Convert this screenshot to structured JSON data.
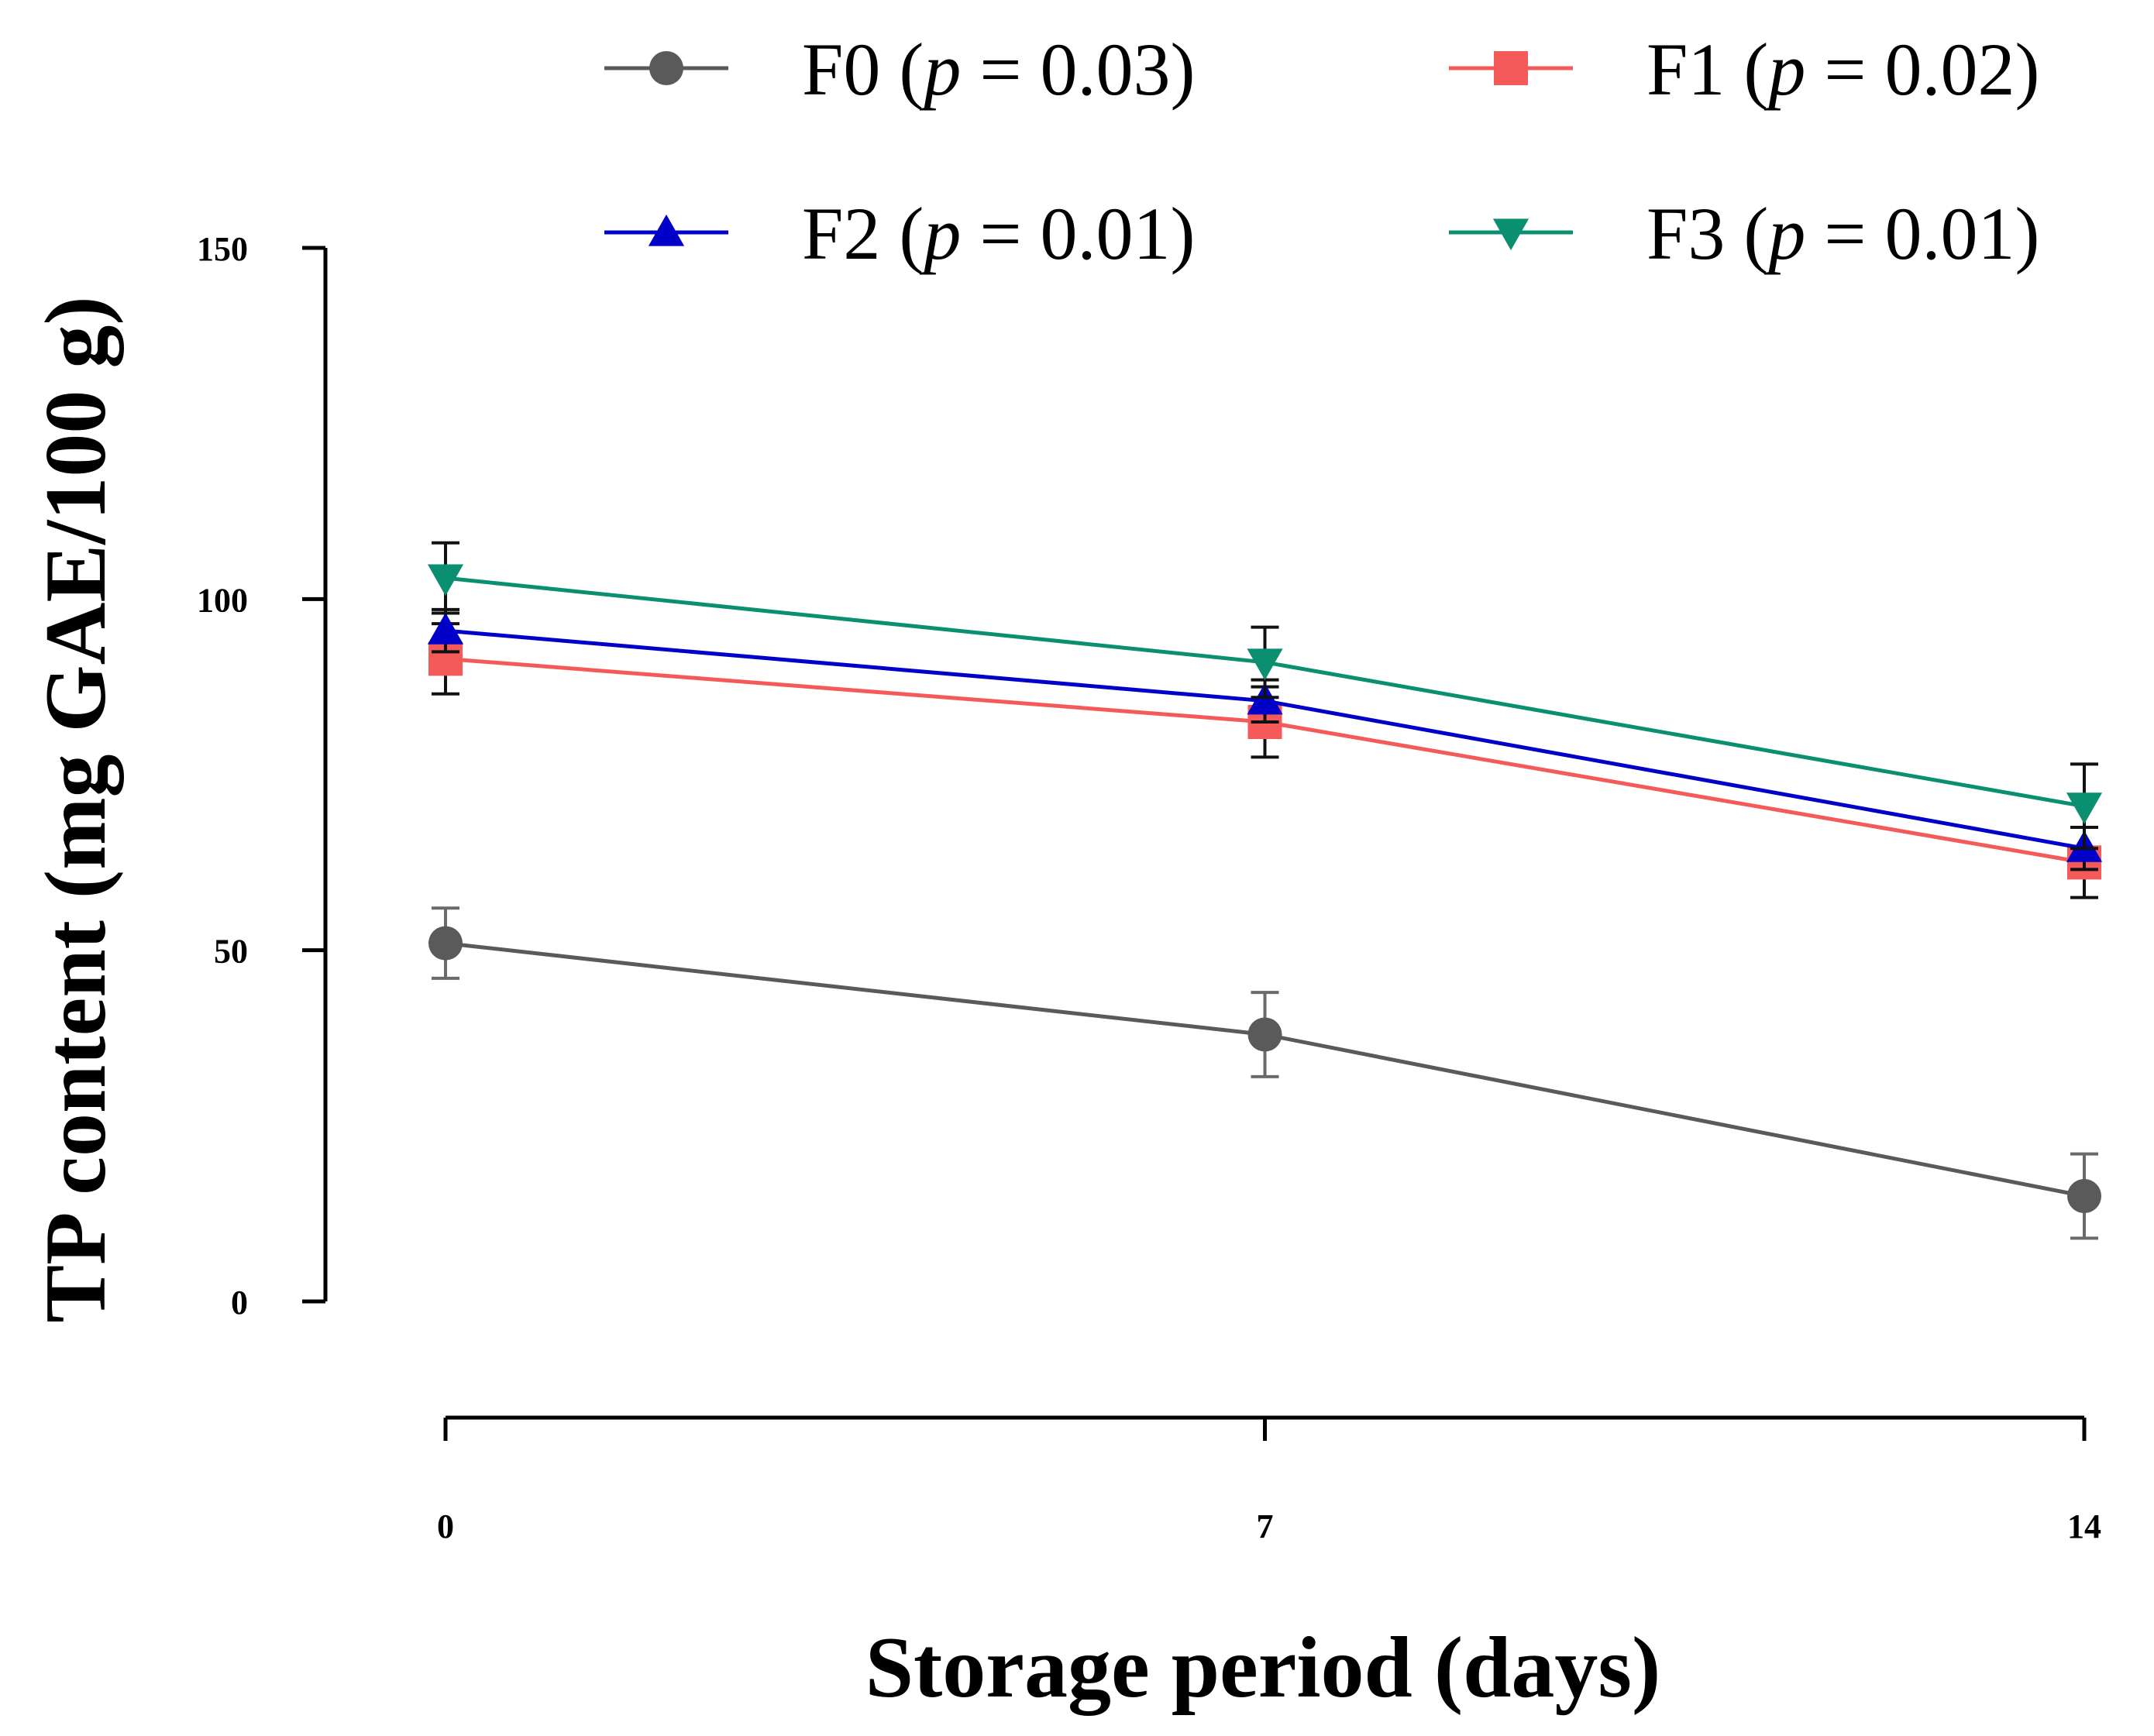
{
  "chart_data": {
    "type": "line",
    "title": "",
    "xlabel": "Storage period (days)",
    "ylabel": "TP content (mg GAE/100 g)",
    "x": [
      0,
      7,
      14
    ],
    "x_tick_labels": [
      "0",
      "7",
      "14"
    ],
    "y_ticks": [
      0,
      50,
      100,
      150
    ],
    "y_tick_labels": [
      "0",
      "50",
      "100",
      "150"
    ],
    "ylim": [
      0,
      150
    ],
    "xlim": [
      0,
      14
    ],
    "grid": false,
    "legend_position": "top",
    "series": [
      {
        "name": "F0",
        "p_prefix": "(",
        "p_symbol": "p",
        "p_suffix": " = 0.03)",
        "values": [
          51,
          38,
          15
        ],
        "errors": [
          5,
          6,
          6
        ],
        "color": "#5a5a5a",
        "marker": "circle"
      },
      {
        "name": "F1",
        "p_prefix": "(",
        "p_symbol": "p",
        "p_suffix": " = 0.02)",
        "values": [
          91.5,
          82.5,
          62.5
        ],
        "errors": [
          5,
          5,
          5
        ],
        "color": "#f55a5a",
        "marker": "square"
      },
      {
        "name": "F2",
        "p_prefix": "(",
        "p_symbol": "p",
        "p_suffix": " = 0.01)",
        "values": [
          95.5,
          85.5,
          64.5
        ],
        "errors": [
          3,
          3,
          3
        ],
        "color": "#0000c8",
        "marker": "triangle-up"
      },
      {
        "name": "F3",
        "p_prefix": "(",
        "p_symbol": "p",
        "p_suffix": " = 0.01)",
        "values": [
          103,
          91,
          70.5
        ],
        "errors": [
          5,
          5,
          6
        ],
        "color": "#0a9070",
        "marker": "triangle-down"
      }
    ]
  }
}
